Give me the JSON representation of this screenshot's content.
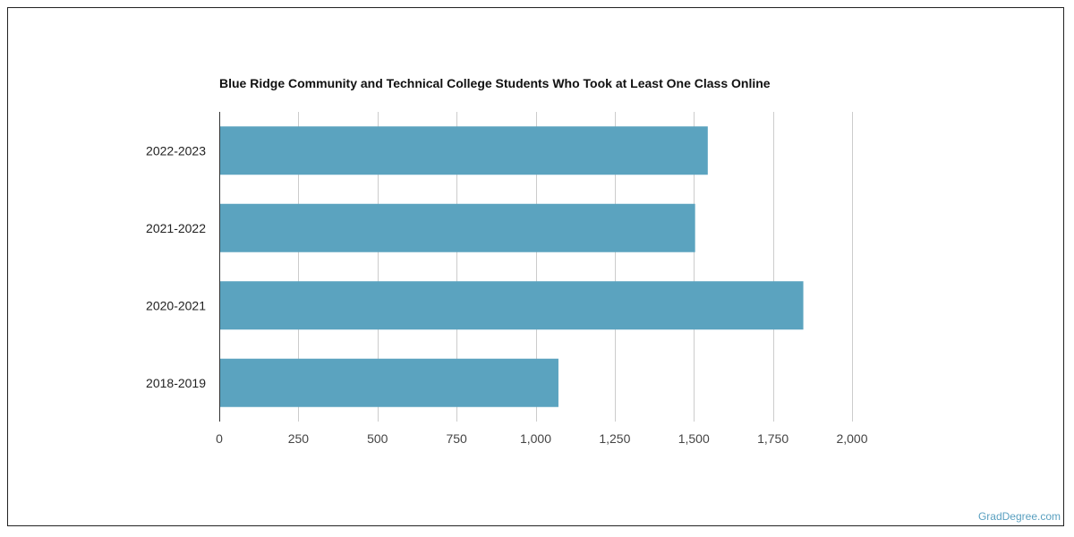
{
  "chart_data": {
    "type": "bar",
    "orientation": "horizontal",
    "title": "Blue Ridge Community and Technical College Students Who Took at Least One Class Online",
    "categories": [
      "2022-2023",
      "2021-2022",
      "2020-2021",
      "2018-2019"
    ],
    "values": [
      1544,
      1504,
      1846,
      1072
    ],
    "xlim": [
      0,
      2000
    ],
    "xticks": [
      0,
      250,
      500,
      750,
      1000,
      1250,
      1500,
      1750,
      2000
    ],
    "xtick_labels": [
      "0",
      "250",
      "500",
      "750",
      "1,000",
      "1,250",
      "1,500",
      "1,750",
      "2,000"
    ],
    "grid": "vertical",
    "bar_color": "#5ba3bf",
    "grid_color": "#cccccc"
  },
  "credit": "GradDegree.com"
}
